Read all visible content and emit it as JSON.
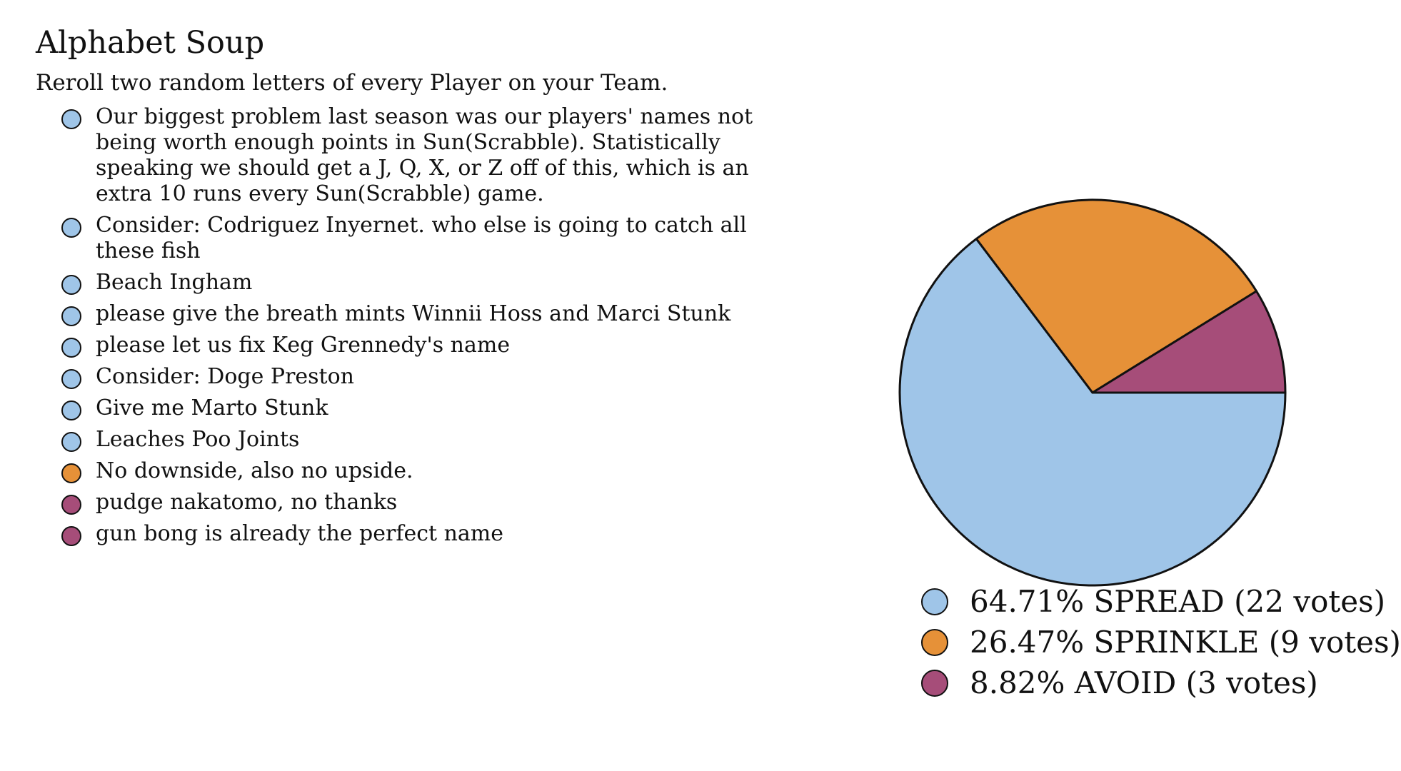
{
  "title": "Alphabet Soup",
  "subtitle": "Reroll two random letters of every Player on your Team.",
  "colors": {
    "SPREAD": "#9fc5e8",
    "SPRINKLE": "#e69138",
    "AVOID": "#a64d79",
    "outline": "#111111"
  },
  "comments": [
    {
      "choice": "SPREAD",
      "text": "Our biggest problem last season was our players' names not being worth enough points in Sun(Scrabble). Statistically speaking we should get a J, Q, X, or Z off of this, which is an extra 10 runs every Sun(Scrabble) game."
    },
    {
      "choice": "SPREAD",
      "text": "Consider: Codriguez Inyernet. who else is going to catch all these fish"
    },
    {
      "choice": "SPREAD",
      "text": "Beach Ingham"
    },
    {
      "choice": "SPREAD",
      "text": "please give the breath mints Winnii Hoss and Marci Stunk"
    },
    {
      "choice": "SPREAD",
      "text": "please let us fix Keg Grennedy's name"
    },
    {
      "choice": "SPREAD",
      "text": "Consider: Doge Preston"
    },
    {
      "choice": "SPREAD",
      "text": "Give me Marto Stunk"
    },
    {
      "choice": "SPREAD",
      "text": "Leaches Poo Joints"
    },
    {
      "choice": "SPRINKLE",
      "text": "No downside, also no upside."
    },
    {
      "choice": "AVOID",
      "text": "pudge nakatomo, no thanks"
    },
    {
      "choice": "AVOID",
      "text": "gun bong is already the perfect name"
    }
  ],
  "chart_data": {
    "type": "pie",
    "categories": [
      "SPREAD",
      "SPRINKLE",
      "AVOID"
    ],
    "values": [
      22,
      9,
      3
    ],
    "percentages": [
      64.71,
      26.47,
      8.82
    ],
    "colors": [
      "#9fc5e8",
      "#e69138",
      "#a64d79"
    ],
    "legend_placement": "bottom",
    "legend": [
      "64.71% SPREAD (22 votes)",
      "26.47% SPRINKLE (9 votes)",
      "8.82% AVOID (3 votes)"
    ]
  }
}
